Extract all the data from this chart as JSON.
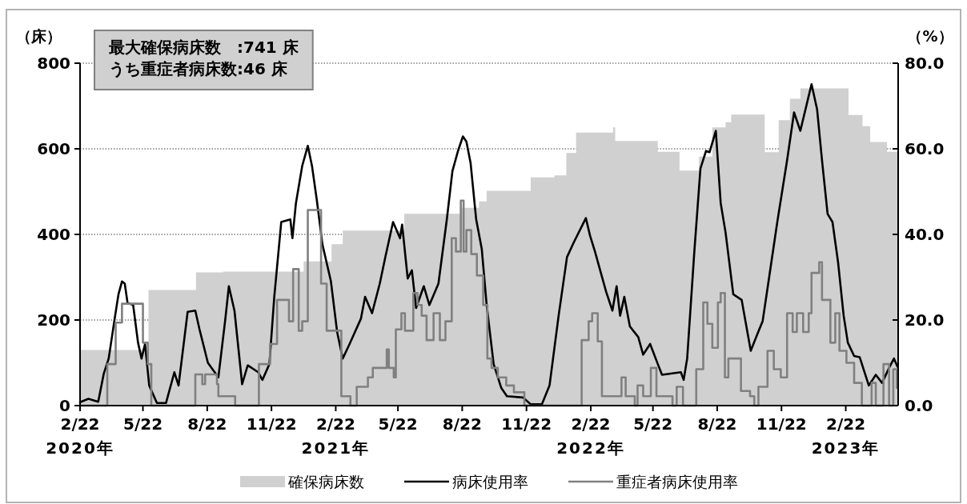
{
  "chart_data": {
    "type": "line",
    "ylabel": "（床）",
    "y2label": "（%）",
    "xlim": [
      "2020-02-22",
      "2023-05-08"
    ],
    "xticks": [
      {
        "value": "2020-02-22",
        "label": "2/22\n2020年"
      },
      {
        "value": "2020-05-22",
        "label": "5/22"
      },
      {
        "value": "2020-08-22",
        "label": "8/22"
      },
      {
        "value": "2020-11-22",
        "label": "11/22"
      },
      {
        "value": "2021-02-22",
        "label": "2/22\n2021年"
      },
      {
        "value": "2021-05-22",
        "label": "5/22"
      },
      {
        "value": "2021-08-22",
        "label": "8/22"
      },
      {
        "value": "2021-11-22",
        "label": "11/22"
      },
      {
        "value": "2022-02-22",
        "label": "2/22\n2022年"
      },
      {
        "value": "2022-05-22",
        "label": "5/22"
      },
      {
        "value": "2022-08-22",
        "label": "8/22"
      },
      {
        "value": "2022-11-22",
        "label": "11/22"
      },
      {
        "value": "2023-02-22",
        "label": "2/22\n2023年"
      }
    ],
    "ylim": [
      0,
      800
    ],
    "yticks": [
      0,
      200,
      400,
      600,
      800
    ],
    "y2lim": [
      0,
      80
    ],
    "y2ticks": [
      {
        "value": 0,
        "label": "0.0"
      },
      {
        "value": 20,
        "label": "20.0"
      },
      {
        "value": 40,
        "label": "40.0"
      },
      {
        "value": 60,
        "label": "60.0"
      },
      {
        "value": 80,
        "label": "80.0"
      }
    ],
    "grid": "y",
    "legend": "bottom",
    "annotations": [
      "最大確保病床数　:741 床",
      "うち重症者病床数:46 床"
    ],
    "series": [
      {
        "name": "確保病床数",
        "type": "area",
        "axis": "y",
        "color": "#d0d0d0",
        "x": [
          "2020-02-22",
          "2020-05-30",
          "2020-05-30",
          "2020-08-06",
          "2020-08-06",
          "2020-09-14",
          "2020-09-14",
          "2021-01-07",
          "2021-01-07",
          "2021-02-16",
          "2021-02-16",
          "2021-03-04",
          "2021-03-04",
          "2021-05-31",
          "2021-05-31",
          "2021-08-19",
          "2021-08-19",
          "2021-09-15",
          "2021-09-15",
          "2021-09-26",
          "2021-09-26",
          "2021-11-28",
          "2021-11-28",
          "2022-01-01",
          "2022-01-01",
          "2022-01-18",
          "2022-01-18",
          "2022-02-01",
          "2022-02-01",
          "2022-03-26",
          "2022-03-26",
          "2022-03-29",
          "2022-03-29",
          "2022-05-29",
          "2022-05-29",
          "2022-06-29",
          "2022-06-29",
          "2022-07-27",
          "2022-07-27",
          "2022-08-15",
          "2022-08-15",
          "2022-09-03",
          "2022-09-03",
          "2022-09-11",
          "2022-09-11",
          "2022-10-29",
          "2022-10-29",
          "2022-11-18",
          "2022-11-18",
          "2022-12-04",
          "2022-12-04",
          "2022-12-19",
          "2022-12-19",
          "2023-02-26",
          "2023-02-26",
          "2023-03-18",
          "2023-03-18",
          "2023-03-29",
          "2023-03-29",
          "2023-04-22",
          "2023-04-22",
          "2023-05-08"
        ],
        "values": [
          130,
          130,
          270,
          270,
          311,
          311,
          313,
          313,
          337,
          337,
          377,
          377,
          409,
          409,
          448,
          448,
          462,
          462,
          477,
          477,
          502,
          502,
          533,
          533,
          538,
          538,
          590,
          590,
          638,
          638,
          650,
          650,
          618,
          618,
          593,
          593,
          549,
          549,
          582,
          582,
          650,
          650,
          662,
          662,
          680,
          680,
          592,
          592,
          667,
          667,
          717,
          717,
          741,
          741,
          679,
          679,
          653,
          653,
          616,
          616,
          593,
          593
        ]
      },
      {
        "name": "病床使用率",
        "axis": "y2",
        "color": "#000000",
        "x": [
          "2020-02-22",
          "2020-03-05",
          "2020-03-19",
          "2020-03-27",
          "2020-04-03",
          "2020-04-11",
          "2020-04-17",
          "2020-04-22",
          "2020-04-26",
          "2020-04-30",
          "2020-05-08",
          "2020-05-15",
          "2020-05-20",
          "2020-05-25",
          "2020-05-31",
          "2020-06-11",
          "2020-06-24",
          "2020-07-06",
          "2020-07-12",
          "2020-07-25",
          "2020-08-05",
          "2020-08-11",
          "2020-08-23",
          "2020-09-07",
          "2020-09-17",
          "2020-09-22",
          "2020-09-30",
          "2020-10-11",
          "2020-10-19",
          "2020-11-03",
          "2020-11-09",
          "2020-11-19",
          "2020-11-26",
          "2020-12-06",
          "2020-12-19",
          "2020-12-22",
          "2020-12-27",
          "2021-01-05",
          "2021-01-13",
          "2021-01-19",
          "2021-01-26",
          "2021-02-03",
          "2021-02-15",
          "2021-02-24",
          "2021-03-04",
          "2021-03-13",
          "2021-03-30",
          "2021-04-05",
          "2021-04-15",
          "2021-04-26",
          "2021-05-04",
          "2021-05-15",
          "2021-05-25",
          "2021-05-28",
          "2021-06-05",
          "2021-06-11",
          "2021-06-17",
          "2021-06-28",
          "2021-07-06",
          "2021-07-19",
          "2021-07-31",
          "2021-08-08",
          "2021-08-16",
          "2021-08-23",
          "2021-08-28",
          "2021-09-03",
          "2021-09-11",
          "2021-09-19",
          "2021-09-26",
          "2021-10-06",
          "2021-10-17",
          "2021-10-25",
          "2021-11-17",
          "2021-11-28",
          "2021-12-14",
          "2021-12-25",
          "2022-01-07",
          "2022-01-19",
          "2022-01-28",
          "2022-02-15",
          "2022-02-21",
          "2022-02-28",
          "2022-03-16",
          "2022-03-25",
          "2022-03-31",
          "2022-04-05",
          "2022-04-11",
          "2022-04-19",
          "2022-05-01",
          "2022-05-08",
          "2022-05-18",
          "2022-05-29",
          "2022-06-04",
          "2022-07-01",
          "2022-07-05",
          "2022-07-10",
          "2022-07-20",
          "2022-07-29",
          "2022-08-06",
          "2022-08-11",
          "2022-08-20",
          "2022-08-27",
          "2022-09-03",
          "2022-09-14",
          "2022-09-26",
          "2022-10-09",
          "2022-10-19",
          "2022-10-26",
          "2022-11-03",
          "2022-11-16",
          "2022-11-30",
          "2022-12-10",
          "2022-12-19",
          "2022-12-29",
          "2023-01-04",
          "2023-01-12",
          "2023-01-19",
          "2023-01-27",
          "2023-02-03",
          "2023-02-11",
          "2023-02-19",
          "2023-02-25",
          "2023-03-06",
          "2023-03-14",
          "2023-03-27",
          "2023-04-06",
          "2023-04-15",
          "2023-04-25",
          "2023-05-02",
          "2023-05-07"
        ],
        "values": [
          0.8,
          1.6,
          0.9,
          7.5,
          11,
          19.7,
          26,
          29,
          28.5,
          24,
          23.5,
          14.7,
          11,
          14.4,
          4.7,
          0.6,
          0.6,
          7.8,
          4.7,
          21.9,
          22.2,
          17.8,
          10,
          6.6,
          20.3,
          27.9,
          22.2,
          5,
          9.4,
          7.8,
          6,
          9.7,
          25.4,
          42.9,
          43.5,
          39.1,
          47.3,
          56,
          60.7,
          56,
          47.9,
          37.6,
          29.1,
          17.2,
          11,
          14.1,
          20.3,
          25.4,
          21.6,
          28.5,
          34.7,
          42.9,
          39.1,
          42.3,
          29.7,
          31.6,
          22.8,
          27.9,
          23.5,
          28.5,
          43.5,
          54.8,
          59.5,
          62.9,
          61.7,
          56.7,
          43.5,
          36.6,
          23.5,
          9.7,
          4.1,
          2.2,
          1.9,
          0.3,
          0.3,
          4.7,
          21,
          34.7,
          37.9,
          43.8,
          39.7,
          36,
          26.6,
          22.2,
          27.9,
          21,
          25.4,
          18.5,
          16,
          11.9,
          14.4,
          9.7,
          7.2,
          7.8,
          6,
          11,
          35.4,
          55.4,
          59.5,
          59.2,
          64.2,
          47.3,
          40.4,
          26,
          24.7,
          12.8,
          16.9,
          19.7,
          28.5,
          42.9,
          57.3,
          68.5,
          64.2,
          71,
          75.1,
          69.2,
          57.3,
          44.8,
          42.9,
          33.5,
          21,
          14.7,
          11.6,
          11.3,
          4.7,
          7.2,
          5.3,
          8.8,
          11,
          9.1
        ]
      },
      {
        "name": "重症者病床使用率",
        "type": "step",
        "axis": "y2",
        "color": "#808080",
        "x": [
          "2020-02-22",
          "2020-04-01",
          "2020-04-13",
          "2020-04-22",
          "2020-05-22",
          "2020-05-29",
          "2020-06-03",
          "2020-08-05",
          "2020-08-15",
          "2020-08-19",
          "2020-09-05",
          "2020-09-07",
          "2020-10-01",
          "2020-11-04",
          "2020-11-20",
          "2020-11-30",
          "2020-12-17",
          "2020-12-23",
          "2020-12-31",
          "2021-01-05",
          "2021-01-13",
          "2021-02-01",
          "2021-02-09",
          "2021-03-02",
          "2021-03-15",
          "2021-03-24",
          "2021-04-09",
          "2021-04-16",
          "2021-05-06",
          "2021-05-09",
          "2021-05-16",
          "2021-05-19",
          "2021-05-27",
          "2021-06-01",
          "2021-06-13",
          "2021-06-19",
          "2021-06-25",
          "2021-07-02",
          "2021-07-12",
          "2021-07-21",
          "2021-07-29",
          "2021-08-07",
          "2021-08-13",
          "2021-08-20",
          "2021-08-24",
          "2021-08-28",
          "2021-09-04",
          "2021-09-12",
          "2021-09-21",
          "2021-09-27",
          "2021-10-03",
          "2021-10-12",
          "2021-10-24",
          "2021-11-04",
          "2021-11-19",
          "2022-02-09",
          "2022-02-19",
          "2022-02-24",
          "2022-03-04",
          "2022-03-10",
          "2022-04-07",
          "2022-04-13",
          "2022-04-26",
          "2022-04-30",
          "2022-05-08",
          "2022-05-19",
          "2022-05-27",
          "2022-06-19",
          "2022-06-25",
          "2022-07-04",
          "2022-07-23",
          "2022-08-02",
          "2022-08-08",
          "2022-08-15",
          "2022-08-23",
          "2022-08-27",
          "2022-09-02",
          "2022-09-07",
          "2022-09-25",
          "2022-10-08",
          "2022-10-14",
          "2022-10-20",
          "2022-11-02",
          "2022-11-11",
          "2022-11-21",
          "2022-11-30",
          "2022-12-08",
          "2022-12-14",
          "2022-12-23",
          "2022-12-31",
          "2023-01-04",
          "2023-01-15",
          "2023-01-19",
          "2023-01-31",
          "2023-02-07",
          "2023-02-13",
          "2023-02-23",
          "2023-03-06",
          "2023-03-17",
          "2023-03-31",
          "2023-04-06",
          "2023-04-17",
          "2023-04-25",
          "2023-05-01",
          "2023-05-06"
        ],
        "values": [
          0,
          9.7,
          19.4,
          23.8,
          14.7,
          9.7,
          0,
          7.3,
          5,
          7.3,
          5,
          2.2,
          0,
          9.7,
          14.4,
          24.7,
          19.7,
          31.9,
          17.5,
          19.7,
          45.7,
          28.5,
          17.5,
          2.2,
          0,
          4.4,
          6.6,
          8.8,
          13.1,
          8.8,
          6.6,
          17.8,
          21.6,
          17.5,
          26.3,
          23.5,
          21,
          15.3,
          21.6,
          15.3,
          19.7,
          39.1,
          36,
          47.9,
          36,
          41,
          35.4,
          30.4,
          23.5,
          11,
          8.8,
          6.6,
          4.7,
          3.1,
          0,
          15.3,
          19.7,
          21.6,
          15,
          2.2,
          6.6,
          2.2,
          0,
          4.7,
          2.2,
          8.8,
          2.2,
          0,
          4.4,
          0,
          8.5,
          24.1,
          19.1,
          13.5,
          24.1,
          26.3,
          6.6,
          11,
          3.4,
          2.2,
          0,
          4.4,
          12.8,
          8.5,
          6.6,
          21.6,
          17.2,
          21.6,
          17.2,
          21.6,
          31,
          33.5,
          24.7,
          14.7,
          21.6,
          12.8,
          10,
          5.3,
          0,
          5.3,
          0,
          9.7,
          0,
          8.5,
          4.1
        ]
      }
    ]
  }
}
